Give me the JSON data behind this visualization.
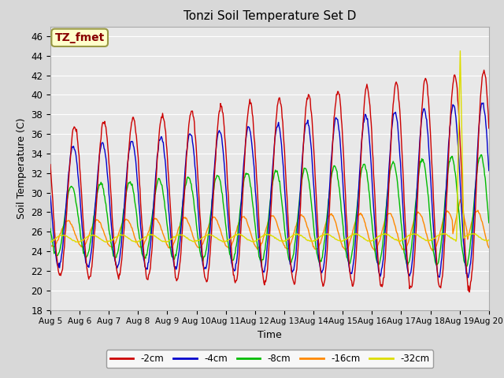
{
  "title": "Tonzi Soil Temperature Set D",
  "xlabel": "Time",
  "ylabel": "Soil Temperature (C)",
  "ylim": [
    18,
    47
  ],
  "yticks": [
    18,
    20,
    22,
    24,
    26,
    28,
    30,
    32,
    34,
    36,
    38,
    40,
    42,
    44,
    46
  ],
  "legend_labels": [
    "-2cm",
    "-4cm",
    "-8cm",
    "-16cm",
    "-32cm"
  ],
  "legend_colors": [
    "#cc0000",
    "#0000cc",
    "#00bb00",
    "#ff8800",
    "#dddd00"
  ],
  "annotation_text": "TZ_fmet",
  "annotation_color": "#880000",
  "annotation_bg": "#ffffcc",
  "plot_bg": "#e8e8e8",
  "fig_bg": "#d8d8d8",
  "x_tick_labels": [
    "Aug 5",
    "Aug 6",
    "Aug 7",
    "Aug 8",
    "Aug 9",
    "Aug 10",
    "Aug 11",
    "Aug 12",
    "Aug 13",
    "Aug 14",
    "Aug 15",
    "Aug 16",
    "Aug 17",
    "Aug 18",
    "Aug 19",
    "Aug 20"
  ],
  "grid_color": "#ffffff",
  "days_total": 15
}
